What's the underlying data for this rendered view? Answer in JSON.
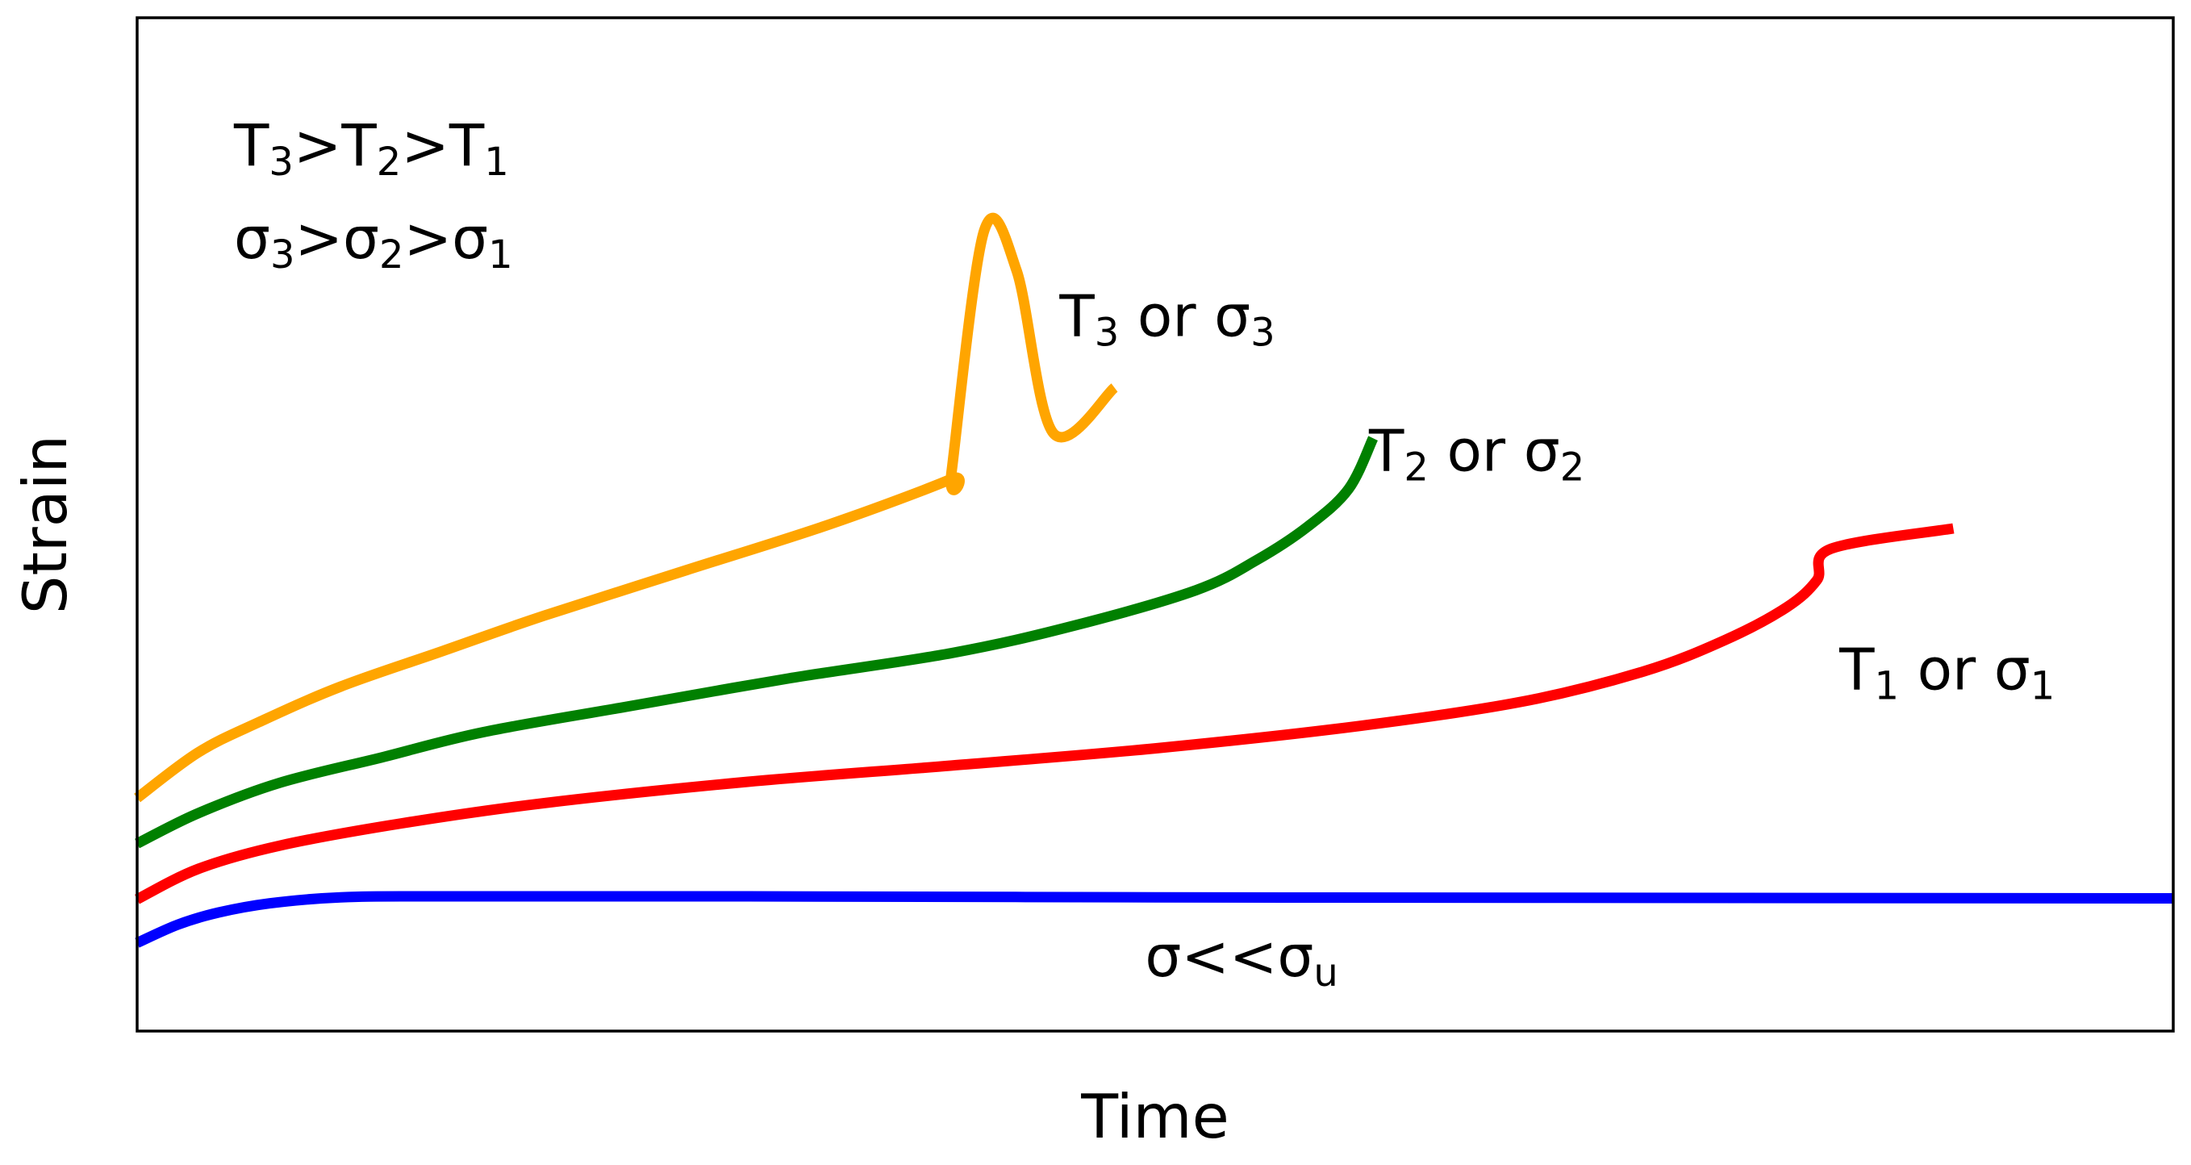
{
  "chart_data": {
    "type": "line",
    "title": "",
    "xlabel": "Time",
    "ylabel": "Strain",
    "xlim": [
      0,
      100
    ],
    "ylim": [
      0,
      100
    ],
    "grid": false,
    "show_ticks": false,
    "colors": {
      "frame": "#000000",
      "text": "#000000"
    },
    "notes": [
      {
        "parts": [
          [
            "T",
            ""
          ],
          [
            "3",
            "sub"
          ],
          [
            ">T",
            ""
          ],
          [
            "2",
            "sub"
          ],
          [
            ">T",
            ""
          ],
          [
            "1",
            "sub"
          ]
        ]
      },
      {
        "parts": [
          [
            "σ",
            ""
          ],
          [
            "3",
            "sub"
          ],
          [
            ">σ",
            ""
          ],
          [
            "2",
            "sub"
          ],
          [
            ">σ",
            ""
          ],
          [
            "1",
            "sub"
          ]
        ]
      }
    ],
    "series": [
      {
        "name": "T3 or σ3",
        "color": "#FFA500",
        "label_parts": [
          [
            "T",
            ""
          ],
          [
            "3",
            "sub"
          ],
          [
            " or σ",
            ""
          ],
          [
            "3",
            "sub"
          ]
        ],
        "label_at": [
          45.3,
          68.6
        ],
        "points": [
          [
            0,
            23
          ],
          [
            3,
            27.5
          ],
          [
            6,
            30.5
          ],
          [
            10,
            34
          ],
          [
            15,
            37.5
          ],
          [
            20,
            41
          ],
          [
            27,
            45.5
          ],
          [
            34,
            50
          ],
          [
            40,
            54.5
          ],
          [
            45,
            59
          ],
          [
            48,
            63.5
          ],
          [
            41.6,
            79
          ],
          [
            43.2,
            75
          ],
          [
            40,
            55.2
          ]
        ]
      },
      {
        "name": "T2 or σ2",
        "color": "#008000",
        "label_parts": [
          [
            "T",
            ""
          ],
          [
            "2",
            "sub"
          ],
          [
            " or σ",
            ""
          ],
          [
            "2",
            "sub"
          ]
        ],
        "label_at": [
          60.5,
          55.3
        ],
        "points": [
          [
            0,
            18.5
          ],
          [
            3,
            21.5
          ],
          [
            7,
            24.5
          ],
          [
            12,
            27
          ],
          [
            17,
            29.5
          ],
          [
            24,
            32
          ],
          [
            32,
            34.8
          ],
          [
            40,
            37.3
          ],
          [
            46,
            40
          ],
          [
            52,
            43.5
          ],
          [
            55,
            46.5
          ],
          [
            57.5,
            49.8
          ],
          [
            59.5,
            53.5
          ],
          [
            60.7,
            58.5
          ]
        ]
      },
      {
        "name": "T1 or σ1",
        "color": "#FF0000",
        "label_parts": [
          [
            "T",
            ""
          ],
          [
            "1",
            "sub"
          ],
          [
            " or σ",
            ""
          ],
          [
            "1",
            "sub"
          ]
        ],
        "label_at": [
          83.6,
          33.7
        ],
        "points": [
          [
            0,
            13
          ],
          [
            3,
            16
          ],
          [
            7,
            18.3
          ],
          [
            13,
            20.5
          ],
          [
            20,
            22.5
          ],
          [
            30,
            24.6
          ],
          [
            40,
            26.2
          ],
          [
            50,
            27.9
          ],
          [
            60,
            30.1
          ],
          [
            68,
            32.5
          ],
          [
            74,
            35.5
          ],
          [
            78,
            38.6
          ],
          [
            81,
            41.8
          ],
          [
            82.5,
            44.5
          ],
          [
            83.2,
            47.6
          ],
          [
            89.2,
            49.6
          ]
        ]
      },
      {
        "name": "σ<<σu",
        "color": "#0000FF",
        "label_parts": [
          [
            "σ<<σ",
            ""
          ],
          [
            "u",
            "sub"
          ]
        ],
        "label_at": [
          49.5,
          5.4
        ],
        "points": [
          [
            0,
            8.7
          ],
          [
            2,
            10.5
          ],
          [
            4,
            11.7
          ],
          [
            6.5,
            12.6
          ],
          [
            10,
            13.2
          ],
          [
            15,
            13.3
          ],
          [
            30,
            13.3
          ],
          [
            50,
            13.2
          ],
          [
            70,
            13.15
          ],
          [
            100,
            13.1
          ]
        ]
      }
    ]
  }
}
